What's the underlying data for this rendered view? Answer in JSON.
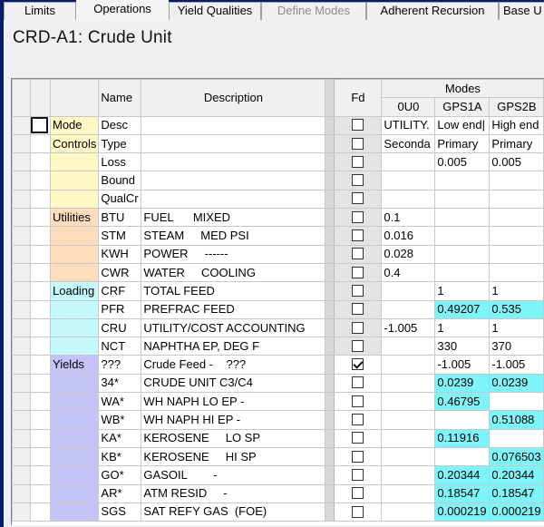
{
  "tabs": [
    {
      "label": "Limits",
      "state": "normal"
    },
    {
      "label": "Operations",
      "state": "active"
    },
    {
      "label": "Yield Qualities",
      "state": "normal"
    },
    {
      "label": "Define Modes",
      "state": "disabled"
    },
    {
      "label": "Adherent Recursion",
      "state": "normal"
    },
    {
      "label": "Base U",
      "state": "normal"
    }
  ],
  "title": "CRD-A1: Crude Unit",
  "grid": {
    "headers": {
      "name": "Name",
      "description": "Description",
      "fd": "Fd",
      "modes_group": "Modes",
      "modes": [
        "0U0",
        "GPS1A",
        "GPS2B"
      ]
    },
    "colors": {
      "mode_controls": "#fff8c4",
      "utilities": "#ffdcbc",
      "loading": "#c4f8fc",
      "yields": "#c4c4f8",
      "highlight": "#7ef4f8"
    },
    "rows": [
      {
        "group": "Mode",
        "gclass": "grp-mode",
        "name": "Desc",
        "desc": "",
        "fd": false,
        "v": [
          "UTILITY.",
          "Low end|",
          "High end"
        ],
        "hl": [
          false,
          false,
          false
        ]
      },
      {
        "group": "Controls",
        "gclass": "grp-mode",
        "name": "Type",
        "desc": "",
        "fd": false,
        "v": [
          "Seconda",
          "Primary",
          "Primary"
        ],
        "hl": [
          false,
          false,
          false
        ]
      },
      {
        "group": "",
        "gclass": "grp-mode",
        "name": "Loss",
        "desc": "",
        "fd": false,
        "v": [
          "",
          "0.005",
          "0.005"
        ],
        "hl": [
          false,
          false,
          false
        ]
      },
      {
        "group": "",
        "gclass": "grp-mode",
        "name": "Bound",
        "desc": "",
        "fd": false,
        "v": [
          "",
          "",
          ""
        ],
        "hl": [
          false,
          false,
          false
        ]
      },
      {
        "group": "",
        "gclass": "grp-mode",
        "name": "QualCr",
        "desc": "",
        "fd": false,
        "v": [
          "",
          "",
          ""
        ],
        "hl": [
          false,
          false,
          false
        ]
      },
      {
        "group": "Utilities",
        "gclass": "grp-util",
        "name": "BTU",
        "desc": "FUEL      MIXED",
        "fd": false,
        "v": [
          "0.1",
          "",
          ""
        ],
        "hl": [
          false,
          false,
          false
        ]
      },
      {
        "group": "",
        "gclass": "grp-util",
        "name": "STM",
        "desc": "STEAM     MED PSI",
        "fd": false,
        "v": [
          "0.016",
          "",
          ""
        ],
        "hl": [
          false,
          false,
          false
        ]
      },
      {
        "group": "",
        "gclass": "grp-util",
        "name": "KWH",
        "desc": "POWER     ------",
        "fd": false,
        "v": [
          "0.028",
          "",
          ""
        ],
        "hl": [
          false,
          false,
          false
        ]
      },
      {
        "group": "",
        "gclass": "grp-util",
        "name": "CWR",
        "desc": "WATER     COOLING",
        "fd": false,
        "v": [
          "0.4",
          "",
          ""
        ],
        "hl": [
          false,
          false,
          false
        ]
      },
      {
        "group": "Loading",
        "gclass": "grp-load",
        "name": "CRF",
        "desc": "TOTAL FEED",
        "fd": false,
        "v": [
          "",
          "1",
          "1"
        ],
        "hl": [
          false,
          false,
          false
        ]
      },
      {
        "group": "",
        "gclass": "grp-load",
        "name": "PFR",
        "desc": "PREFRAC FEED",
        "fd": false,
        "v": [
          "",
          "0.49207",
          "0.535"
        ],
        "hl": [
          false,
          true,
          true
        ]
      },
      {
        "group": "",
        "gclass": "grp-load",
        "name": "CRU",
        "desc": "UTILITY/COST ACCOUNTING",
        "fd": false,
        "v": [
          "-1.005",
          "1",
          "1"
        ],
        "hl": [
          false,
          false,
          false
        ]
      },
      {
        "group": "",
        "gclass": "grp-load",
        "name": "NCT",
        "desc": "NAPHTHA EP, DEG F",
        "fd": false,
        "v": [
          "",
          "330",
          "370"
        ],
        "hl": [
          false,
          false,
          false
        ]
      },
      {
        "group": "Yields",
        "gclass": "grp-yield",
        "name": "???",
        "desc": "Crude Feed -    ???",
        "fd": true,
        "v": [
          "",
          "-1.005",
          "-1.005"
        ],
        "hl": [
          false,
          false,
          false
        ]
      },
      {
        "group": "",
        "gclass": "grp-yield",
        "name": "34*",
        "desc": "CRUDE UNIT C3/C4",
        "fd": false,
        "v": [
          "",
          "0.0239",
          "0.0239"
        ],
        "hl": [
          false,
          true,
          true
        ]
      },
      {
        "group": "",
        "gclass": "grp-yield",
        "name": "WA*",
        "desc": "WH NAPH LO EP -",
        "fd": false,
        "v": [
          "",
          "0.46795",
          ""
        ],
        "hl": [
          false,
          true,
          false
        ]
      },
      {
        "group": "",
        "gclass": "grp-yield",
        "name": "WB*",
        "desc": "WH NAPH HI EP -",
        "fd": false,
        "v": [
          "",
          "",
          "0.51088"
        ],
        "hl": [
          false,
          false,
          true
        ]
      },
      {
        "group": "",
        "gclass": "grp-yield",
        "name": "KA*",
        "desc": "KEROSENE     LO SP",
        "fd": false,
        "v": [
          "",
          "0.11916",
          ""
        ],
        "hl": [
          false,
          true,
          false
        ]
      },
      {
        "group": "",
        "gclass": "grp-yield",
        "name": "KB*",
        "desc": "KEROSENE     HI SP",
        "fd": false,
        "v": [
          "",
          "",
          "0.076503"
        ],
        "hl": [
          false,
          false,
          true
        ]
      },
      {
        "group": "",
        "gclass": "grp-yield",
        "name": "GO*",
        "desc": "GASOIL        -",
        "fd": false,
        "v": [
          "",
          "0.20344",
          "0.20344"
        ],
        "hl": [
          false,
          true,
          true
        ]
      },
      {
        "group": "",
        "gclass": "grp-yield",
        "name": "AR*",
        "desc": "ATM RESID     -",
        "fd": false,
        "v": [
          "",
          "0.18547",
          "0.18547"
        ],
        "hl": [
          false,
          true,
          true
        ]
      },
      {
        "group": "",
        "gclass": "grp-yield",
        "name": "SGS",
        "desc": "SAT REFY GAS  (FOE)",
        "fd": false,
        "v": [
          "",
          "0.000219",
          "0.000219"
        ],
        "hl": [
          false,
          true,
          true
        ]
      }
    ]
  }
}
